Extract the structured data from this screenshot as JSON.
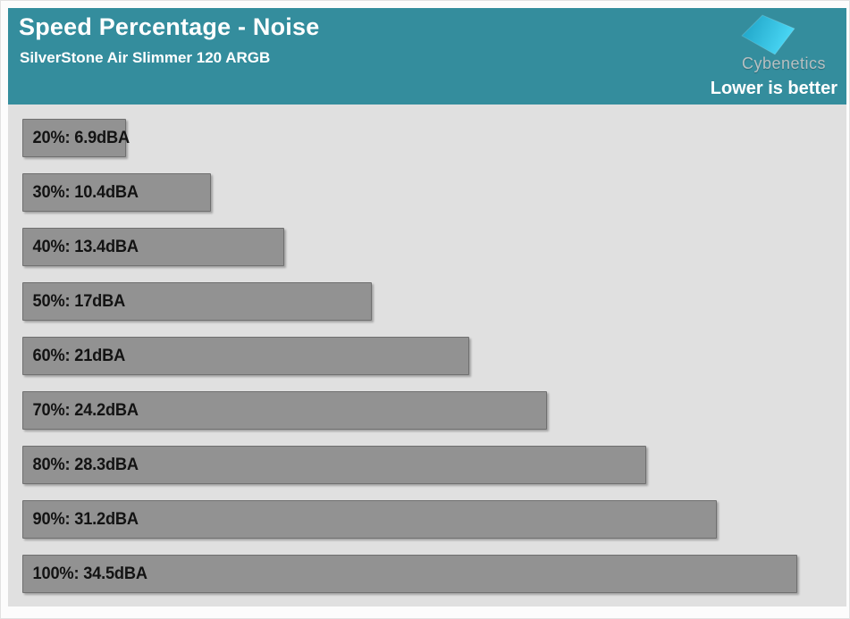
{
  "header": {
    "title": "Speed Percentage - Noise",
    "subtitle": "SilverStone Air Slimmer 120 ARGB",
    "brand": "Cybenetics",
    "note": "Lower is better",
    "background_color": "#348d9d",
    "logo_colors": {
      "start": "#1b9fc2",
      "end": "#4ad7f5"
    }
  },
  "chart_data": {
    "type": "bar",
    "orientation": "horizontal",
    "title": "Speed Percentage - Noise",
    "subtitle": "SilverStone Air Slimmer 120 ARGB",
    "annotation": "Lower is better",
    "categories": [
      "20%",
      "30%",
      "40%",
      "50%",
      "60%",
      "70%",
      "80%",
      "90%",
      "100%"
    ],
    "values": [
      6.9,
      10.4,
      13.4,
      17,
      21,
      24.2,
      28.3,
      31.2,
      34.5
    ],
    "unit": "dBA",
    "labels": [
      "20%: 6.9dBA",
      "30%: 10.4dBA",
      "40%: 13.4dBA",
      "50%: 17dBA",
      "60%: 21dBA",
      "70%: 24.2dBA",
      "80%: 28.3dBA",
      "90%: 31.2dBA",
      "100%: 34.5dBA"
    ],
    "xlabel": "",
    "ylabel": "",
    "xlim": [
      2.64,
      34.5
    ],
    "grid": false,
    "legend": false,
    "bar_color": "#929292",
    "bar_border_color": "#6f6f6f",
    "plot_background": "#e0e0e0",
    "label_color": "#131313"
  }
}
